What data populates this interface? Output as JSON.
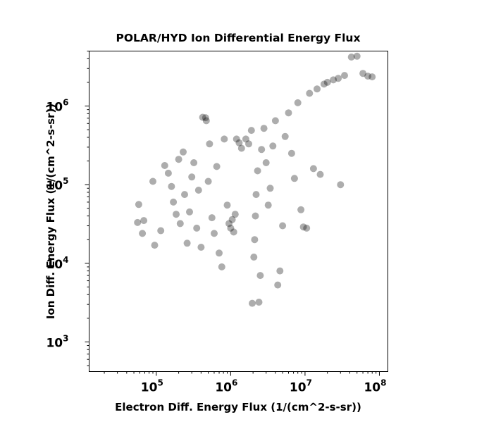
{
  "chart_data": {
    "type": "scatter",
    "title": "POLAR/HYD  Ion Differential Energy Flux",
    "xlabel": "Electron Diff. Energy Flux (1/(cm^2-s-sr))",
    "ylabel": "Ion Diff. Energy Flux (1/(cm^2-s-sr))",
    "xscale": "log",
    "yscale": "log",
    "xlim": [
      12500,
      130000000
    ],
    "ylim": [
      420,
      5000000
    ],
    "x_ticks": [
      {
        "base": "10",
        "exp": "5",
        "value": 100000
      },
      {
        "base": "10",
        "exp": "6",
        "value": 1000000
      },
      {
        "base": "10",
        "exp": "7",
        "value": 10000000
      },
      {
        "base": "10",
        "exp": "8",
        "value": 100000000
      }
    ],
    "y_ticks": [
      {
        "base": "10",
        "exp": "3",
        "value": 1000
      },
      {
        "base": "10",
        "exp": "4",
        "value": 10000
      },
      {
        "base": "10",
        "exp": "5",
        "value": 100000
      },
      {
        "base": "10",
        "exp": "6",
        "value": 1000000
      }
    ],
    "marker_color": "#000000",
    "marker_alpha": 0.32,
    "grid": false,
    "series": [
      {
        "points": [
          [
            58000,
            56000
          ],
          [
            56000,
            33000
          ],
          [
            65000,
            24000
          ],
          [
            68000,
            35000
          ],
          [
            90000,
            110000
          ],
          [
            95000,
            17000
          ],
          [
            115000,
            26000
          ],
          [
            130000,
            175000
          ],
          [
            145000,
            140000
          ],
          [
            160000,
            95000
          ],
          [
            170000,
            60000
          ],
          [
            185000,
            42000
          ],
          [
            200000,
            210000
          ],
          [
            210000,
            32000
          ],
          [
            230000,
            260000
          ],
          [
            240000,
            75000
          ],
          [
            260000,
            18000
          ],
          [
            280000,
            45000
          ],
          [
            300000,
            125000
          ],
          [
            320000,
            190000
          ],
          [
            350000,
            28000
          ],
          [
            370000,
            85000
          ],
          [
            400000,
            16000
          ],
          [
            420000,
            720000
          ],
          [
            460000,
            710000
          ],
          [
            470000,
            650000
          ],
          [
            500000,
            110000
          ],
          [
            520000,
            330000
          ],
          [
            560000,
            38000
          ],
          [
            600000,
            24000
          ],
          [
            650000,
            170000
          ],
          [
            700000,
            13500
          ],
          [
            760000,
            9000
          ],
          [
            820000,
            380000
          ],
          [
            900000,
            55000
          ],
          [
            950000,
            32000
          ],
          [
            1000000,
            28000
          ],
          [
            1050000,
            36000
          ],
          [
            1100000,
            25000
          ],
          [
            1150000,
            42000
          ],
          [
            1200000,
            380000
          ],
          [
            1300000,
            340000
          ],
          [
            1400000,
            290000
          ],
          [
            1600000,
            380000
          ],
          [
            1750000,
            330000
          ],
          [
            1900000,
            490000
          ],
          [
            1950000,
            3100
          ],
          [
            2050000,
            12000
          ],
          [
            2100000,
            20000
          ],
          [
            2150000,
            40000
          ],
          [
            2200000,
            75000
          ],
          [
            2300000,
            150000
          ],
          [
            2400000,
            3200
          ],
          [
            2500000,
            7000
          ],
          [
            2600000,
            280000
          ],
          [
            2800000,
            520000
          ],
          [
            3000000,
            190000
          ],
          [
            3200000,
            55000
          ],
          [
            3400000,
            90000
          ],
          [
            3700000,
            310000
          ],
          [
            4000000,
            650000
          ],
          [
            4300000,
            5300
          ],
          [
            4600000,
            8000
          ],
          [
            5000000,
            30000
          ],
          [
            5400000,
            410000
          ],
          [
            6000000,
            820000
          ],
          [
            6600000,
            250000
          ],
          [
            7200000,
            120000
          ],
          [
            8000000,
            1100000
          ],
          [
            8800000,
            48000
          ],
          [
            9500000,
            29000
          ],
          [
            10500000,
            28000
          ],
          [
            11500000,
            1450000
          ],
          [
            13000000,
            160000
          ],
          [
            14500000,
            1650000
          ],
          [
            16000000,
            135000
          ],
          [
            18000000,
            1900000
          ],
          [
            20000000,
            2000000
          ],
          [
            24000000,
            2150000
          ],
          [
            28000000,
            2250000
          ],
          [
            30000000,
            100000
          ],
          [
            34000000,
            2450000
          ],
          [
            42000000,
            4200000
          ],
          [
            50000000,
            4300000
          ],
          [
            60000000,
            2600000
          ],
          [
            70000000,
            2400000
          ],
          [
            80000000,
            2350000
          ]
        ]
      }
    ]
  }
}
